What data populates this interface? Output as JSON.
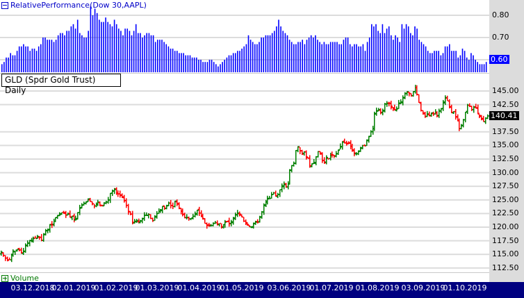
{
  "rp_panel": {
    "title": "RelativePerformance(Dow 30,AAPL)",
    "collapse_icon": "minus-box-icon",
    "y_ticks": [
      "0.80",
      "0.70",
      "0.60"
    ],
    "current_value": "0.60",
    "bar_color": "#0000ff"
  },
  "price_panel": {
    "title": "GLD (Spdr Gold Trust) Daily",
    "y_ticks": [
      "145.00",
      "142.50",
      "137.50",
      "135.00",
      "132.50",
      "130.00",
      "127.50",
      "125.00",
      "122.50",
      "120.00",
      "117.50",
      "115.00",
      "112.50"
    ],
    "last_price": "140.41",
    "up_color": "#008000",
    "down_color": "#ff0000"
  },
  "volume_panel": {
    "label": "Volume",
    "expand_icon": "plus-box-icon"
  },
  "x_axis": {
    "labels": [
      "03.12.2018",
      "02.01.2019",
      "01.02.2019",
      "01.03.2019",
      "01.04.2019",
      "01.05.2019",
      "03.06.2019",
      "01.07.2019",
      "01.08.2019",
      "03.09.2019",
      "01.10.2019"
    ]
  },
  "chart_data": [
    {
      "type": "bar",
      "title": "RelativePerformance(Dow 30,AAPL)",
      "xlabel": "",
      "ylabel": "",
      "ylim": [
        0.55,
        0.87
      ],
      "grid": true,
      "categories": [
        "Dec 2018",
        "Jan 2019",
        "Feb 2019",
        "Mar 2019",
        "Apr 2019",
        "May 2019",
        "Jun 2019",
        "Jul 2019",
        "Aug 2019",
        "Sep 2019",
        "Oct 2019"
      ],
      "values": [
        0.64,
        0.7,
        0.82,
        0.74,
        0.69,
        0.64,
        0.68,
        0.66,
        0.71,
        0.7,
        0.63
      ],
      "series_raw": [
        0.58,
        0.59,
        0.61,
        0.61,
        0.63,
        0.62,
        0.62,
        0.64,
        0.66,
        0.66,
        0.67,
        0.66,
        0.66,
        0.64,
        0.65,
        0.65,
        0.64,
        0.66,
        0.67,
        0.7,
        0.7,
        0.69,
        0.69,
        0.69,
        0.68,
        0.69,
        0.71,
        0.72,
        0.72,
        0.71,
        0.73,
        0.73,
        0.75,
        0.76,
        0.74,
        0.78,
        0.72,
        0.71,
        0.7,
        0.7,
        0.73,
        0.84,
        0.8,
        0.83,
        0.81,
        0.78,
        0.77,
        0.77,
        0.79,
        0.77,
        0.76,
        0.75,
        0.78,
        0.76,
        0.74,
        0.73,
        0.71,
        0.74,
        0.74,
        0.73,
        0.71,
        0.73,
        0.76,
        0.72,
        0.72,
        0.7,
        0.71,
        0.72,
        0.72,
        0.71,
        0.71,
        0.68,
        0.69,
        0.69,
        0.69,
        0.68,
        0.67,
        0.66,
        0.65,
        0.65,
        0.64,
        0.64,
        0.63,
        0.63,
        0.63,
        0.62,
        0.62,
        0.62,
        0.61,
        0.61,
        0.61,
        0.6,
        0.6,
        0.59,
        0.59,
        0.59,
        0.6,
        0.6,
        0.59,
        0.58,
        0.57,
        0.58,
        0.59,
        0.6,
        0.61,
        0.62,
        0.62,
        0.63,
        0.63,
        0.64,
        0.64,
        0.65,
        0.66,
        0.67,
        0.71,
        0.69,
        0.68,
        0.67,
        0.67,
        0.68,
        0.7,
        0.7,
        0.71,
        0.71,
        0.71,
        0.72,
        0.73,
        0.75,
        0.78,
        0.75,
        0.73,
        0.72,
        0.71,
        0.69,
        0.68,
        0.67,
        0.67,
        0.68,
        0.68,
        0.69,
        0.67,
        0.69,
        0.7,
        0.71,
        0.7,
        0.71,
        0.69,
        0.68,
        0.67,
        0.68,
        0.67,
        0.67,
        0.68,
        0.68,
        0.68,
        0.68,
        0.67,
        0.67,
        0.69,
        0.7,
        0.7,
        0.67,
        0.66,
        0.67,
        0.67,
        0.66,
        0.66,
        0.67,
        0.64,
        0.68,
        0.7,
        0.76,
        0.75,
        0.76,
        0.73,
        0.72,
        0.76,
        0.72,
        0.74,
        0.75,
        0.71,
        0.69,
        0.71,
        0.7,
        0.68,
        0.76,
        0.74,
        0.76,
        0.75,
        0.72,
        0.71,
        0.75,
        0.74,
        0.69,
        0.68,
        0.67,
        0.66,
        0.64,
        0.63,
        0.63,
        0.64,
        0.64,
        0.64,
        0.62,
        0.63,
        0.66,
        0.66,
        0.67,
        0.64,
        0.64,
        0.64,
        0.61,
        0.62,
        0.65,
        0.64,
        0.61,
        0.6,
        0.63,
        0.62,
        0.6,
        0.59,
        0.58,
        0.58,
        0.58,
        0.59
      ]
    },
    {
      "type": "ohlc",
      "title": "GLD (Spdr Gold Trust) Daily",
      "xlabel": "",
      "ylabel": "",
      "ylim": [
        111.0,
        147.5
      ],
      "grid": true,
      "last": 140.41,
      "categories": [
        "03.12.2018",
        "02.01.2019",
        "01.02.2019",
        "01.03.2019",
        "01.04.2019",
        "01.05.2019",
        "03.06.2019",
        "01.07.2019",
        "01.08.2019",
        "03.09.2019",
        "01.10.2019"
      ],
      "closes_at_labels": [
        114.5,
        120.5,
        124.5,
        121.5,
        122.0,
        120.0,
        122.5,
        133.5,
        134.5,
        145.5,
        140.0
      ],
      "closes": [
        115.4,
        114.8,
        114.3,
        113.9,
        114.0,
        115.0,
        115.6,
        115.6,
        115.9,
        115.8,
        115.3,
        115.6,
        116.7,
        117.1,
        117.6,
        117.5,
        117.9,
        118.0,
        118.3,
        118.1,
        117.6,
        118.6,
        119.4,
        119.6,
        120.4,
        120.4,
        121.1,
        121.8,
        122.1,
        122.3,
        122.7,
        122.5,
        122.2,
        122.4,
        121.9,
        122.0,
        121.4,
        121.6,
        122.7,
        123.6,
        124.1,
        124.4,
        124.6,
        125.2,
        124.7,
        124.3,
        123.9,
        124.1,
        124.6,
        123.9,
        124.0,
        124.4,
        124.6,
        125.0,
        126.2,
        126.6,
        126.9,
        126.2,
        126.1,
        125.8,
        125.4,
        124.9,
        124.0,
        122.8,
        122.4,
        120.9,
        121.1,
        121.2,
        121.0,
        121.1,
        121.6,
        122.2,
        122.2,
        122.3,
        121.6,
        121.2,
        122.0,
        122.5,
        122.9,
        123.2,
        123.8,
        123.5,
        123.9,
        124.4,
        124.0,
        123.8,
        124.8,
        124.2,
        123.5,
        122.9,
        122.4,
        121.7,
        121.8,
        121.5,
        121.6,
        122.0,
        122.5,
        123.1,
        122.6,
        122.1,
        121.6,
        120.7,
        120.3,
        120.4,
        120.3,
        120.7,
        120.8,
        120.6,
        120.7,
        120.1,
        120.5,
        120.9,
        121.0,
        120.6,
        121.0,
        121.7,
        122.3,
        122.6,
        122.4,
        121.9,
        121.1,
        120.7,
        120.5,
        120.1,
        120.1,
        120.6,
        120.9,
        120.9,
        121.8,
        122.8,
        124.1,
        124.7,
        125.3,
        125.3,
        126.0,
        126.3,
        125.8,
        126.0,
        126.9,
        127.6,
        127.8,
        127.4,
        127.9,
        130.4,
        131.3,
        131.7,
        134.1,
        134.8,
        134.0,
        133.4,
        133.8,
        132.9,
        132.6,
        131.3,
        131.7,
        131.9,
        132.9,
        133.9,
        133.6,
        132.2,
        131.8,
        132.8,
        132.6,
        133.2,
        133.3,
        133.1,
        133.5,
        134.1,
        134.8,
        135.6,
        135.5,
        135.3,
        135.4,
        134.8,
        134.2,
        133.6,
        133.5,
        134.0,
        134.6,
        135.0,
        134.9,
        136.0,
        136.7,
        137.5,
        138.1,
        140.9,
        141.4,
        141.6,
        141.1,
        141.3,
        142.6,
        142.7,
        142.7,
        142.2,
        141.7,
        141.6,
        141.7,
        142.8,
        143.0,
        143.7,
        144.5,
        144.9,
        144.5,
        144.1,
        144.9,
        145.6,
        144.4,
        142.9,
        141.4,
        140.8,
        140.3,
        140.8,
        140.4,
        141.0,
        140.8,
        141.1,
        140.4,
        141.3,
        141.8,
        142.8,
        143.8,
        143.2,
        142.0,
        141.1,
        141.2,
        140.2,
        139.5,
        138.1,
        138.6,
        139.7,
        141.1,
        142.4,
        142.2,
        141.6,
        142.0,
        141.8,
        140.9,
        140.5,
        139.8,
        139.4,
        140.0,
        140.41
      ]
    }
  ]
}
